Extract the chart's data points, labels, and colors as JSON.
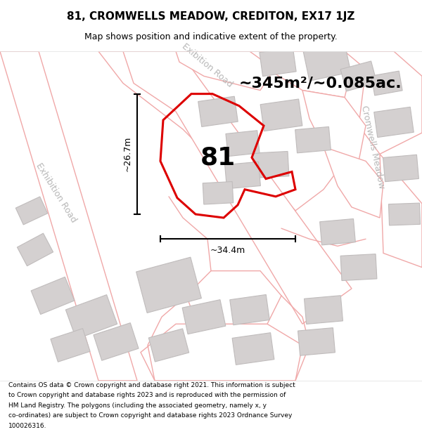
{
  "title_line1": "81, CROMWELLS MEADOW, CREDITON, EX17 1JZ",
  "title_line2": "Map shows position and indicative extent of the property.",
  "area_text": "~345m²/~0.085ac.",
  "label_81": "81",
  "dim_height": "~26.7m",
  "dim_width": "~34.4m",
  "road_label_left": "Exhibition Road",
  "road_label_right": "Cromwells Meadow",
  "road_label_upper": "Exibition Road",
  "copyright_text": "Contains OS data © Crown copyright and database right 2021. This information is subject to Crown copyright and database rights 2023 and is reproduced with the permission of HM Land Registry. The polygons (including the associated geometry, namely x, y co-ordinates) are subject to Crown copyright and database rights 2023 Ordnance Survey 100026316.",
  "bg_color": "#ffffff",
  "map_bg": "#ffffff",
  "road_edge": "#f0a8a8",
  "building_fill": "#d4d0d0",
  "building_edge": "#c0bcbc",
  "property_stroke": "#dd0000",
  "dim_color": "#000000",
  "text_color": "#000000",
  "road_text_color": "#b8b8b8",
  "title_fontsize": 11,
  "subtitle_fontsize": 9,
  "area_fontsize": 16,
  "number_fontsize": 26,
  "dim_fontsize": 9,
  "road_fontsize": 9,
  "copy_fontsize": 6.5
}
